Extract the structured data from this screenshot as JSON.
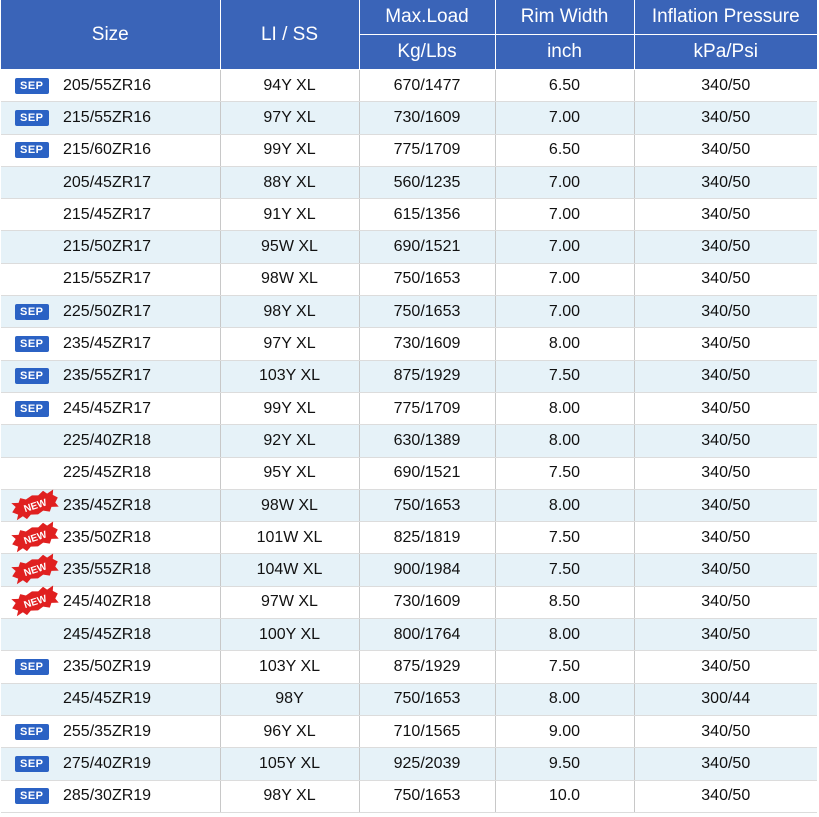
{
  "header": {
    "size": "Size",
    "li_ss": "LI / SS",
    "max_load": "Max.Load",
    "max_load_unit": "Kg/Lbs",
    "rim_width": "Rim Width",
    "rim_width_unit": "inch",
    "inflation": "Inflation Pressure",
    "inflation_unit": "kPa/Psi"
  },
  "badges": {
    "sep": "SEP",
    "new": "NEW"
  },
  "colors": {
    "header_bg": "#3a64b8",
    "row_alt": "#e6f2f8",
    "sep_badge": "#2b62c4",
    "new_badge": "#e02020"
  },
  "rows": [
    {
      "badge": "sep",
      "size": "205/55ZR16",
      "li": "94Y XL",
      "load": "670/1477",
      "rim": "6.50",
      "pressure": "340/50"
    },
    {
      "badge": "sep",
      "size": "215/55ZR16",
      "li": "97Y XL",
      "load": "730/1609",
      "rim": "7.00",
      "pressure": "340/50"
    },
    {
      "badge": "sep",
      "size": "215/60ZR16",
      "li": "99Y XL",
      "load": "775/1709",
      "rim": "6.50",
      "pressure": "340/50"
    },
    {
      "badge": "",
      "size": "205/45ZR17",
      "li": "88Y XL",
      "load": "560/1235",
      "rim": "7.00",
      "pressure": "340/50"
    },
    {
      "badge": "",
      "size": "215/45ZR17",
      "li": "91Y XL",
      "load": "615/1356",
      "rim": "7.00",
      "pressure": "340/50"
    },
    {
      "badge": "",
      "size": "215/50ZR17",
      "li": "95W XL",
      "load": "690/1521",
      "rim": "7.00",
      "pressure": "340/50"
    },
    {
      "badge": "",
      "size": "215/55ZR17",
      "li": "98W XL",
      "load": "750/1653",
      "rim": "7.00",
      "pressure": "340/50"
    },
    {
      "badge": "sep",
      "size": "225/50ZR17",
      "li": "98Y XL",
      "load": "750/1653",
      "rim": "7.00",
      "pressure": "340/50"
    },
    {
      "badge": "sep",
      "size": "235/45ZR17",
      "li": "97Y XL",
      "load": "730/1609",
      "rim": "8.00",
      "pressure": "340/50"
    },
    {
      "badge": "sep",
      "size": "235/55ZR17",
      "li": "103Y XL",
      "load": "875/1929",
      "rim": "7.50",
      "pressure": "340/50"
    },
    {
      "badge": "sep",
      "size": "245/45ZR17",
      "li": "99Y XL",
      "load": "775/1709",
      "rim": "8.00",
      "pressure": "340/50"
    },
    {
      "badge": "",
      "size": "225/40ZR18",
      "li": "92Y XL",
      "load": "630/1389",
      "rim": "8.00",
      "pressure": "340/50"
    },
    {
      "badge": "",
      "size": "225/45ZR18",
      "li": "95Y XL",
      "load": "690/1521",
      "rim": "7.50",
      "pressure": "340/50"
    },
    {
      "badge": "new",
      "size": "235/45ZR18",
      "li": "98W XL",
      "load": "750/1653",
      "rim": "8.00",
      "pressure": "340/50"
    },
    {
      "badge": "new",
      "size": "235/50ZR18",
      "li": "101W XL",
      "load": "825/1819",
      "rim": "7.50",
      "pressure": "340/50"
    },
    {
      "badge": "new",
      "size": "235/55ZR18",
      "li": "104W XL",
      "load": "900/1984",
      "rim": "7.50",
      "pressure": "340/50"
    },
    {
      "badge": "new",
      "size": "245/40ZR18",
      "li": "97W XL",
      "load": "730/1609",
      "rim": "8.50",
      "pressure": "340/50"
    },
    {
      "badge": "",
      "size": "245/45ZR18",
      "li": "100Y XL",
      "load": "800/1764",
      "rim": "8.00",
      "pressure": "340/50"
    },
    {
      "badge": "sep",
      "size": "235/50ZR19",
      "li": "103Y XL",
      "load": "875/1929",
      "rim": "7.50",
      "pressure": "340/50"
    },
    {
      "badge": "",
      "size": "245/45ZR19",
      "li": "98Y",
      "load": "750/1653",
      "rim": "8.00",
      "pressure": "300/44"
    },
    {
      "badge": "sep",
      "size": "255/35ZR19",
      "li": "96Y XL",
      "load": "710/1565",
      "rim": "9.00",
      "pressure": "340/50"
    },
    {
      "badge": "sep",
      "size": "275/40ZR19",
      "li": "105Y XL",
      "load": "925/2039",
      "rim": "9.50",
      "pressure": "340/50"
    },
    {
      "badge": "sep",
      "size": "285/30ZR19",
      "li": "98Y XL",
      "load": "750/1653",
      "rim": "10.0",
      "pressure": "340/50"
    }
  ]
}
